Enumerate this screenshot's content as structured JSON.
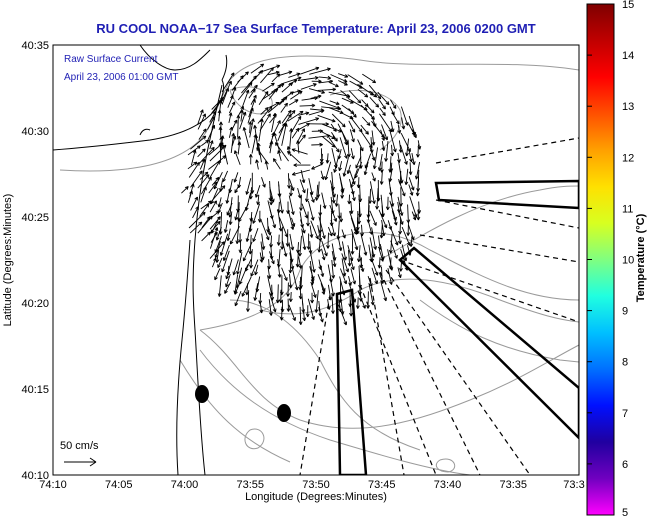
{
  "title": "RU COOL  NOAA−17  Sea Surface Temperature:  April 23, 2006 0200 GMT",
  "legend": {
    "line1": "Raw Surface Current",
    "line2": "April 23, 2006 01:00 GMT",
    "scale_label": "50 cm/s"
  },
  "x_axis": {
    "label": "Longitude (Degrees:Minutes)",
    "ticks": [
      "74:10",
      "74:05",
      "74:00",
      "73:55",
      "73:50",
      "73:45",
      "73:40",
      "73:35",
      "73:3"
    ]
  },
  "y_axis": {
    "label": "Latitude (Degrees:Minutes)",
    "ticks": [
      "40:35",
      "40:30",
      "40:25",
      "40:20",
      "40:15",
      "40:10"
    ]
  },
  "colorbar": {
    "label": "Temperature (°C)",
    "ticks": [
      "15",
      "14",
      "13",
      "12",
      "11",
      "10",
      "9",
      "8",
      "7",
      "6",
      "5"
    ],
    "colors": [
      "#7f0000",
      "#c00000",
      "#ff0000",
      "#ff5000",
      "#ffa000",
      "#ffe000",
      "#d8ff20",
      "#80ff80",
      "#20ffe0",
      "#00c0ff",
      "#0070ff",
      "#0010ff",
      "#2000a0",
      "#7000c0",
      "#ff00ff"
    ]
  },
  "map": {
    "land_color": "#ffffff",
    "coast_color": "#000000",
    "contour_color": "#999999",
    "vector_color": "#000000",
    "markers": 2
  }
}
